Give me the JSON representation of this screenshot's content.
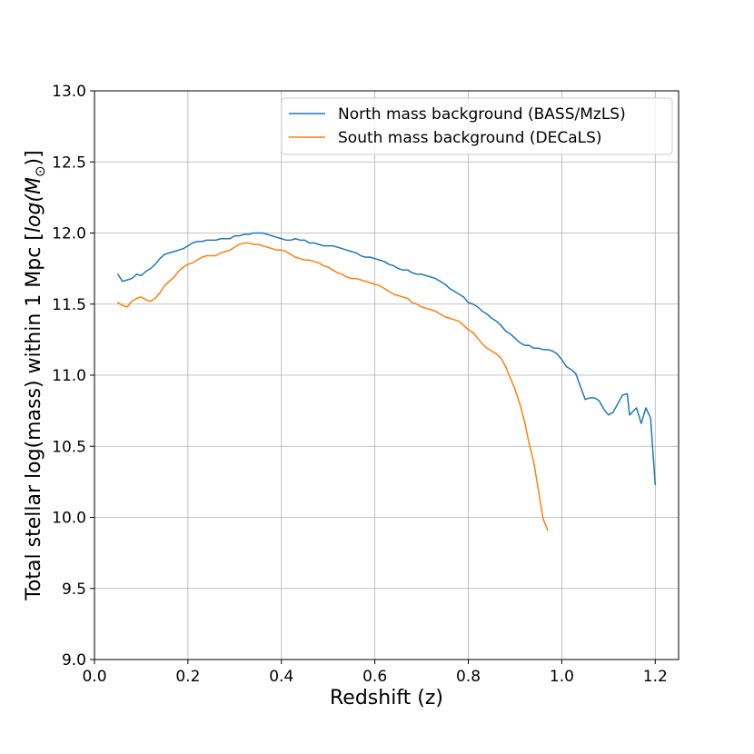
{
  "chart_data": {
    "type": "line",
    "title": "",
    "xlabel": "Redshift (z)",
    "ylabel_prefix": "Total stellar log(mass) within 1 Mpc [",
    "ylabel_math": "log(M",
    "ylabel_sub": "⊙",
    "ylabel_suffix": ")]",
    "xlim": [
      0.0,
      1.25
    ],
    "ylim": [
      9.0,
      13.0
    ],
    "x_ticks": [
      0.0,
      0.2,
      0.4,
      0.6,
      0.8,
      1.0,
      1.2
    ],
    "x_tick_labels": [
      "0.0",
      "0.2",
      "0.4",
      "0.6",
      "0.8",
      "1.0",
      "1.2"
    ],
    "y_ticks": [
      9.0,
      9.5,
      10.0,
      10.5,
      11.0,
      11.5,
      12.0,
      12.5,
      13.0
    ],
    "y_tick_labels": [
      "9.0",
      "9.5",
      "10.0",
      "10.5",
      "11.0",
      "11.5",
      "12.0",
      "12.5",
      "13.0"
    ],
    "grid": true,
    "legend_position": "top-right",
    "series": [
      {
        "name": "North mass background (BASS/MzLS)",
        "color": "#1f77b4",
        "points": [
          [
            0.05,
            11.71
          ],
          [
            0.06,
            11.66
          ],
          [
            0.07,
            11.67
          ],
          [
            0.08,
            11.68
          ],
          [
            0.09,
            11.71
          ],
          [
            0.1,
            11.7
          ],
          [
            0.11,
            11.73
          ],
          [
            0.12,
            11.75
          ],
          [
            0.13,
            11.78
          ],
          [
            0.14,
            11.82
          ],
          [
            0.15,
            11.85
          ],
          [
            0.16,
            11.86
          ],
          [
            0.17,
            11.87
          ],
          [
            0.18,
            11.88
          ],
          [
            0.19,
            11.89
          ],
          [
            0.2,
            11.91
          ],
          [
            0.21,
            11.93
          ],
          [
            0.22,
            11.94
          ],
          [
            0.23,
            11.94
          ],
          [
            0.24,
            11.95
          ],
          [
            0.25,
            11.95
          ],
          [
            0.26,
            11.95
          ],
          [
            0.27,
            11.96
          ],
          [
            0.28,
            11.96
          ],
          [
            0.29,
            11.96
          ],
          [
            0.3,
            11.98
          ],
          [
            0.31,
            11.98
          ],
          [
            0.32,
            11.99
          ],
          [
            0.33,
            11.99
          ],
          [
            0.34,
            12.0
          ],
          [
            0.35,
            12.0
          ],
          [
            0.36,
            12.0
          ],
          [
            0.37,
            11.99
          ],
          [
            0.38,
            11.98
          ],
          [
            0.39,
            11.97
          ],
          [
            0.4,
            11.96
          ],
          [
            0.41,
            11.95
          ],
          [
            0.42,
            11.95
          ],
          [
            0.43,
            11.96
          ],
          [
            0.44,
            11.95
          ],
          [
            0.45,
            11.95
          ],
          [
            0.46,
            11.93
          ],
          [
            0.47,
            11.93
          ],
          [
            0.48,
            11.92
          ],
          [
            0.49,
            11.91
          ],
          [
            0.5,
            11.91
          ],
          [
            0.51,
            11.91
          ],
          [
            0.52,
            11.9
          ],
          [
            0.53,
            11.89
          ],
          [
            0.54,
            11.88
          ],
          [
            0.55,
            11.87
          ],
          [
            0.56,
            11.86
          ],
          [
            0.57,
            11.84
          ],
          [
            0.58,
            11.83
          ],
          [
            0.59,
            11.83
          ],
          [
            0.6,
            11.82
          ],
          [
            0.61,
            11.81
          ],
          [
            0.62,
            11.8
          ],
          [
            0.63,
            11.78
          ],
          [
            0.64,
            11.77
          ],
          [
            0.65,
            11.75
          ],
          [
            0.66,
            11.74
          ],
          [
            0.67,
            11.74
          ],
          [
            0.68,
            11.72
          ],
          [
            0.69,
            11.71
          ],
          [
            0.7,
            11.71
          ],
          [
            0.71,
            11.7
          ],
          [
            0.72,
            11.69
          ],
          [
            0.73,
            11.68
          ],
          [
            0.74,
            11.66
          ],
          [
            0.75,
            11.64
          ],
          [
            0.76,
            11.61
          ],
          [
            0.77,
            11.59
          ],
          [
            0.78,
            11.57
          ],
          [
            0.79,
            11.55
          ],
          [
            0.8,
            11.51
          ],
          [
            0.81,
            11.5
          ],
          [
            0.82,
            11.48
          ],
          [
            0.83,
            11.45
          ],
          [
            0.84,
            11.43
          ],
          [
            0.85,
            11.4
          ],
          [
            0.86,
            11.38
          ],
          [
            0.87,
            11.35
          ],
          [
            0.88,
            11.31
          ],
          [
            0.89,
            11.29
          ],
          [
            0.9,
            11.26
          ],
          [
            0.91,
            11.23
          ],
          [
            0.92,
            11.21
          ],
          [
            0.93,
            11.21
          ],
          [
            0.94,
            11.19
          ],
          [
            0.95,
            11.19
          ],
          [
            0.96,
            11.18
          ],
          [
            0.97,
            11.18
          ],
          [
            0.98,
            11.17
          ],
          [
            0.99,
            11.15
          ],
          [
            1.0,
            11.11
          ],
          [
            1.01,
            11.06
          ],
          [
            1.02,
            11.04
          ],
          [
            1.03,
            11.01
          ],
          [
            1.04,
            10.92
          ],
          [
            1.05,
            10.83
          ],
          [
            1.06,
            10.84
          ],
          [
            1.07,
            10.84
          ],
          [
            1.08,
            10.82
          ],
          [
            1.09,
            10.76
          ],
          [
            1.1,
            10.72
          ],
          [
            1.11,
            10.74
          ],
          [
            1.12,
            10.8
          ],
          [
            1.13,
            10.86
          ],
          [
            1.14,
            10.87
          ],
          [
            1.145,
            10.72
          ],
          [
            1.16,
            10.77
          ],
          [
            1.17,
            10.66
          ],
          [
            1.18,
            10.77
          ],
          [
            1.19,
            10.7
          ],
          [
            1.2,
            10.23
          ]
        ]
      },
      {
        "name": "South mass background (DECaLS)",
        "color": "#ff7f0e",
        "points": [
          [
            0.05,
            11.51
          ],
          [
            0.06,
            11.49
          ],
          [
            0.07,
            11.48
          ],
          [
            0.08,
            11.52
          ],
          [
            0.09,
            11.54
          ],
          [
            0.1,
            11.55
          ],
          [
            0.11,
            11.53
          ],
          [
            0.12,
            11.52
          ],
          [
            0.13,
            11.54
          ],
          [
            0.14,
            11.58
          ],
          [
            0.15,
            11.63
          ],
          [
            0.16,
            11.66
          ],
          [
            0.17,
            11.69
          ],
          [
            0.18,
            11.73
          ],
          [
            0.19,
            11.76
          ],
          [
            0.2,
            11.78
          ],
          [
            0.21,
            11.79
          ],
          [
            0.22,
            11.81
          ],
          [
            0.23,
            11.83
          ],
          [
            0.24,
            11.84
          ],
          [
            0.25,
            11.84
          ],
          [
            0.26,
            11.84
          ],
          [
            0.27,
            11.86
          ],
          [
            0.28,
            11.87
          ],
          [
            0.29,
            11.88
          ],
          [
            0.3,
            11.9
          ],
          [
            0.31,
            11.92
          ],
          [
            0.32,
            11.93
          ],
          [
            0.33,
            11.93
          ],
          [
            0.34,
            11.92
          ],
          [
            0.35,
            11.92
          ],
          [
            0.36,
            11.91
          ],
          [
            0.37,
            11.9
          ],
          [
            0.38,
            11.89
          ],
          [
            0.39,
            11.88
          ],
          [
            0.4,
            11.88
          ],
          [
            0.41,
            11.87
          ],
          [
            0.42,
            11.85
          ],
          [
            0.43,
            11.83
          ],
          [
            0.44,
            11.82
          ],
          [
            0.45,
            11.81
          ],
          [
            0.46,
            11.81
          ],
          [
            0.47,
            11.8
          ],
          [
            0.48,
            11.79
          ],
          [
            0.49,
            11.77
          ],
          [
            0.5,
            11.76
          ],
          [
            0.51,
            11.74
          ],
          [
            0.52,
            11.72
          ],
          [
            0.53,
            11.71
          ],
          [
            0.54,
            11.69
          ],
          [
            0.55,
            11.68
          ],
          [
            0.56,
            11.68
          ],
          [
            0.57,
            11.67
          ],
          [
            0.58,
            11.66
          ],
          [
            0.59,
            11.65
          ],
          [
            0.6,
            11.64
          ],
          [
            0.61,
            11.63
          ],
          [
            0.62,
            11.61
          ],
          [
            0.63,
            11.59
          ],
          [
            0.64,
            11.57
          ],
          [
            0.65,
            11.56
          ],
          [
            0.66,
            11.55
          ],
          [
            0.67,
            11.54
          ],
          [
            0.68,
            11.51
          ],
          [
            0.69,
            11.5
          ],
          [
            0.7,
            11.48
          ],
          [
            0.71,
            11.47
          ],
          [
            0.72,
            11.46
          ],
          [
            0.73,
            11.45
          ],
          [
            0.74,
            11.43
          ],
          [
            0.75,
            11.41
          ],
          [
            0.76,
            11.4
          ],
          [
            0.77,
            11.39
          ],
          [
            0.78,
            11.38
          ],
          [
            0.79,
            11.35
          ],
          [
            0.8,
            11.32
          ],
          [
            0.81,
            11.3
          ],
          [
            0.82,
            11.26
          ],
          [
            0.83,
            11.22
          ],
          [
            0.84,
            11.19
          ],
          [
            0.85,
            11.17
          ],
          [
            0.86,
            11.15
          ],
          [
            0.87,
            11.12
          ],
          [
            0.88,
            11.06
          ],
          [
            0.89,
            10.98
          ],
          [
            0.9,
            10.9
          ],
          [
            0.91,
            10.8
          ],
          [
            0.92,
            10.68
          ],
          [
            0.93,
            10.52
          ],
          [
            0.94,
            10.39
          ],
          [
            0.95,
            10.19
          ],
          [
            0.96,
            9.99
          ],
          [
            0.97,
            9.91
          ]
        ]
      }
    ]
  }
}
